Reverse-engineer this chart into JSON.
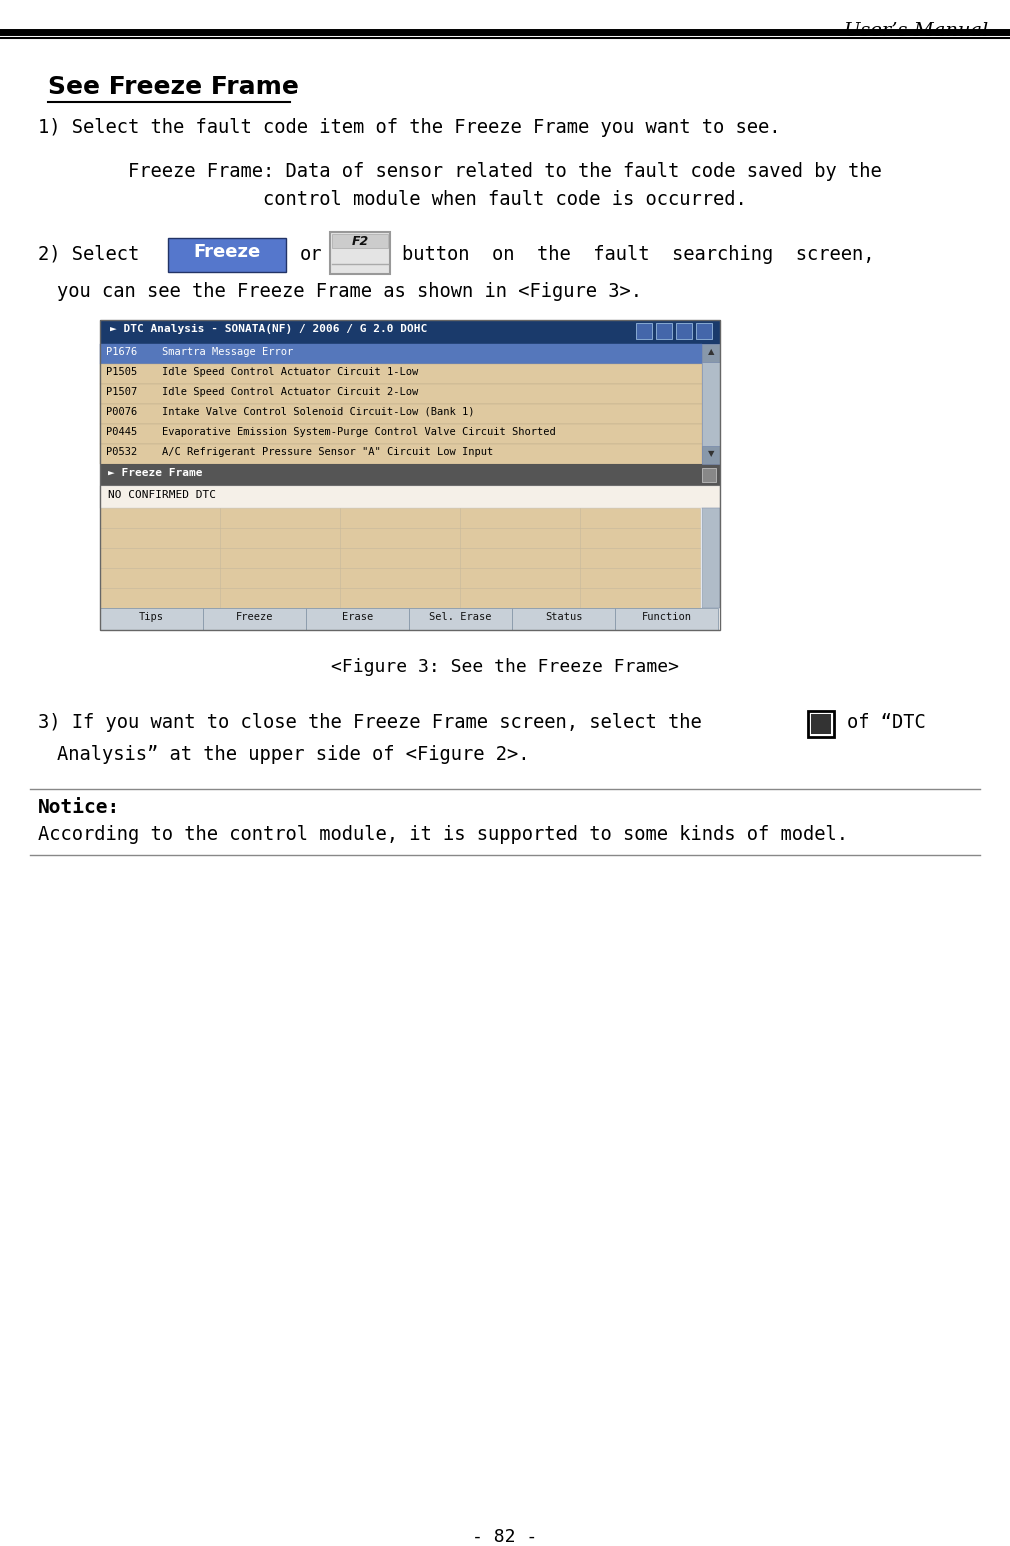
{
  "page_title": "User’s Manual",
  "page_number": "- 82 -",
  "section_title": "See Freeze Frame",
  "step1_text": "1) Select the fault code item of the Freeze Frame you want to see.",
  "freeze_frame_def_line1": "Freeze Frame: Data of sensor related to the fault code saved by the",
  "freeze_frame_def_line2": "control module when fault code is occurred.",
  "step2_prefix": "2) Select",
  "step2_or": "or",
  "step2_suffix": "button  on  the  fault  searching  screen,",
  "step2_line2": "you can see the Freeze Frame as shown in <Figure 3>.",
  "figure_caption": "<Figure 3: See the Freeze Frame>",
  "step3_line1": "3) If you want to close the Freeze Frame screen, select the",
  "step3_line2": "of “DTC",
  "step3_line3": "Analysis” at the upper side of <Figure 2>.",
  "notice_label": "Notice:",
  "notice_text": "According to the control module, it is supported to some kinds of model.",
  "dtc_title": "DTC Analysis - SONATA(NF) / 2006 / G 2.0 DOHC",
  "dtc_rows": [
    {
      "code": "P1676",
      "desc": "Smartra Message Error",
      "selected": true
    },
    {
      "code": "P1505",
      "desc": "Idle Speed Control Actuator Circuit 1-Low",
      "selected": false
    },
    {
      "code": "P1507",
      "desc": "Idle Speed Control Actuator Circuit 2-Low",
      "selected": false
    },
    {
      "code": "P0076",
      "desc": "Intake Valve Control Solenoid Circuit-Low (Bank 1)",
      "selected": false
    },
    {
      "code": "P0445",
      "desc": "Evaporative Emission System-Purge Control Valve Circuit Shorted",
      "selected": false
    },
    {
      "code": "P0532",
      "desc": "A/C Refrigerant Pressure Sensor \"A\" Circuit Low Input",
      "selected": false
    }
  ],
  "freeze_frame_label": "Freeze Frame",
  "no_confirmed_dtc": "NO CONFIRMED DTC",
  "bottom_buttons": [
    "Tips",
    "Freeze",
    "Erase",
    "Sel. Erase",
    "Status",
    "Function"
  ],
  "bg_color": "#ffffff",
  "selected_row_bg": "#5577bb",
  "normal_row_bg": "#dfc9a0",
  "freeze_frame_header_bg": "#555555",
  "table_row_bg": "#dfc9a0",
  "title_bar_color": "#1a3a6b",
  "freeze_btn_color": "#5577cc",
  "scrollbar_bg": "#b0bcc8",
  "scrollbar_arrow": "#8898aa",
  "button_row_bg": "#c8d0d8",
  "button_bg": "#8a9db5",
  "noconf_bg": "#f5f0e8"
}
